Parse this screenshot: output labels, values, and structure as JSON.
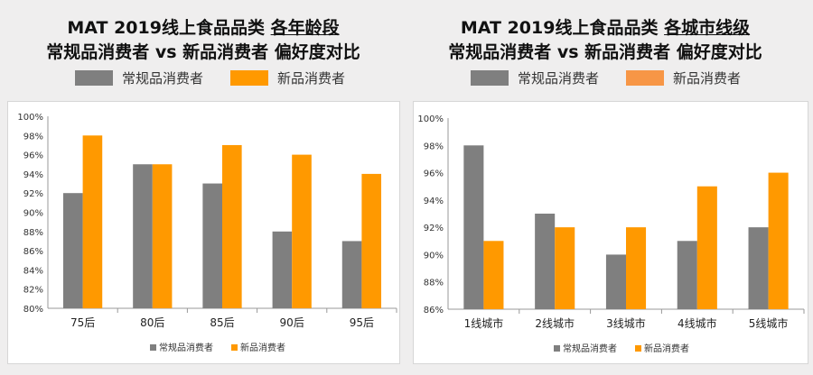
{
  "colors": {
    "regular": "#7f7f7f",
    "new": "#ff9900",
    "new_alt_legend": "#f79646"
  },
  "chart_data": [
    {
      "type": "bar",
      "title_line1": "MAT 2019线上食品品类",
      "title_emph": "各年龄段",
      "title_line2": "常规品消费者 vs 新品消费者 偏好度对比",
      "categories": [
        "75后",
        "80后",
        "85后",
        "90后",
        "95后"
      ],
      "series": [
        {
          "name": "常规品消费者",
          "values": [
            92,
            95,
            93,
            88,
            87
          ]
        },
        {
          "name": "新品消费者",
          "values": [
            98,
            95,
            97,
            96,
            94
          ]
        }
      ],
      "ylim": [
        80,
        100
      ],
      "yticks": [
        "80%",
        "82%",
        "84%",
        "86%",
        "88%",
        "90%",
        "92%",
        "94%",
        "96%",
        "98%",
        "100%"
      ],
      "ystep": 2,
      "legend": "top and bottom"
    },
    {
      "type": "bar",
      "title_line1": "MAT 2019线上食品品类",
      "title_emph": "各城市线级",
      "title_line2": "常规品消费者 vs 新品消费者 偏好度对比",
      "categories": [
        "1线城市",
        "2线城市",
        "3线城市",
        "4线城市",
        "5线城市"
      ],
      "series": [
        {
          "name": "常规品消费者",
          "values": [
            98,
            93,
            90,
            91,
            92
          ]
        },
        {
          "name": "新品消费者",
          "values": [
            91,
            92,
            92,
            95,
            96
          ]
        }
      ],
      "ylim": [
        86,
        100
      ],
      "yticks": [
        "86%",
        "88%",
        "90%",
        "92%",
        "94%",
        "96%",
        "98%",
        "100%"
      ],
      "ystep": 2,
      "legend": "top and bottom"
    }
  ]
}
